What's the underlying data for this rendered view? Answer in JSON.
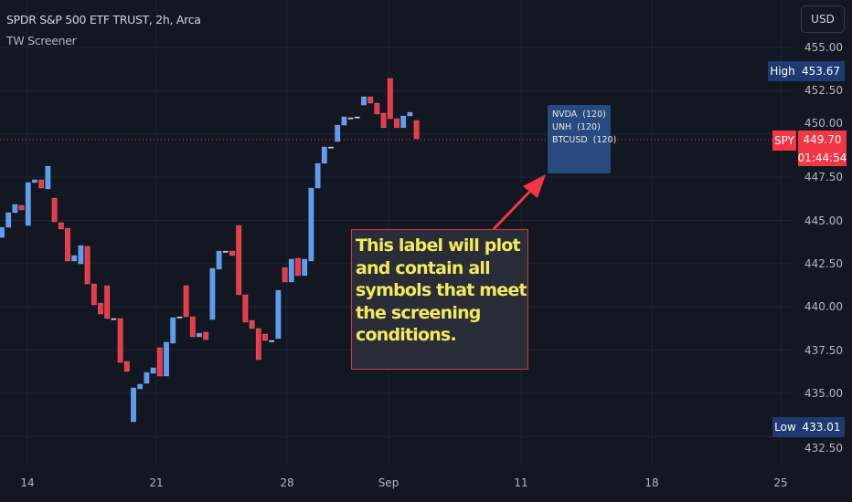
{
  "header": {
    "title": "SPDR S&P 500 ETF TRUST, 2h, Arca",
    "indicator": "TW Screener",
    "currency_button": "USD"
  },
  "price_axis": {
    "ticks": [
      "455.00",
      "452.50",
      "450.00",
      "447.50",
      "445.00",
      "442.50",
      "440.00",
      "437.50",
      "435.00",
      "432.50"
    ]
  },
  "time_axis": {
    "ticks": [
      "14",
      "21",
      "28",
      "Sep",
      "11",
      "18",
      "25"
    ]
  },
  "tags": {
    "high": {
      "label": "High",
      "value": "453.67"
    },
    "low": {
      "label": "Low",
      "value": "433.01"
    },
    "last": {
      "symbol": "SPY",
      "price": "449.70",
      "countdown": "01:44:54"
    }
  },
  "screener_label": {
    "lines": [
      "NVDA  (120)",
      "UNH  (120)",
      "BTCUSD  (120)"
    ]
  },
  "annotation": {
    "text": "This label will plot and contain all symbols that meet the screening conditions."
  },
  "colors": {
    "up": "#5b9cf6",
    "down": "#f23645",
    "doji": "#c8ccd6",
    "background": "#131722",
    "annotation_text": "#f3ea5d",
    "screener_bg": "#284a7e",
    "arrow": "#f23645"
  },
  "chart_data": {
    "type": "candlestick",
    "title": "SPDR S&P 500 ETF TRUST, 2h, Arca",
    "ylim": [
      431.5,
      456.5
    ],
    "yticks": [
      455,
      452.5,
      450,
      447.5,
      445,
      442.5,
      440,
      437.5,
      435,
      432.5
    ],
    "grid": true,
    "bars": [
      [
        444.02,
        444.6
      ],
      [
        444.6,
        445.45
      ],
      [
        445.45,
        445.92
      ],
      [
        445.87,
        445.61
      ],
      [
        444.71,
        447.19
      ],
      [
        447.19,
        447.35
      ],
      [
        447.35,
        446.87
      ],
      [
        446.82,
        448.14
      ],
      [
        446.29,
        444.92
      ],
      [
        444.87,
        444.5
      ],
      [
        444.55,
        442.65
      ],
      [
        442.65,
        442.97
      ],
      [
        442.49,
        443.55
      ],
      [
        443.5,
        441.33
      ],
      [
        441.33,
        440.12
      ],
      [
        440.22,
        439.59
      ],
      [
        441.23,
        439.33
      ],
      [
        439.33,
        439.33
      ],
      [
        439.33,
        436.79
      ],
      [
        436.85,
        436.27
      ],
      [
        433.36,
        435.32
      ],
      [
        435.26,
        435.53
      ],
      [
        435.58,
        436.21
      ],
      [
        436.16,
        436.48
      ],
      [
        437.64,
        436.0
      ],
      [
        436.0,
        437.96
      ],
      [
        437.9,
        439.38
      ],
      [
        439.43,
        439.43
      ],
      [
        441.23,
        439.43
      ],
      [
        439.43,
        438.27
      ],
      [
        438.27,
        438.48
      ],
      [
        438.54,
        438.11
      ],
      [
        439.27,
        442.23
      ],
      [
        442.18,
        443.23
      ],
      [
        443.23,
        443.23
      ],
      [
        443.23,
        442.97
      ],
      [
        444.71,
        440.7
      ],
      [
        440.7,
        439.12
      ],
      [
        439.22,
        438.75
      ],
      [
        438.75,
        436.95
      ],
      [
        438.43,
        438.06
      ],
      [
        438.06,
        438.06
      ],
      [
        438.17,
        440.96
      ],
      [
        442.28,
        441.44
      ],
      [
        441.44,
        442.76
      ],
      [
        442.81,
        441.81
      ],
      [
        441.81,
        442.76
      ],
      [
        442.65,
        446.87
      ],
      [
        446.87,
        448.3
      ],
      [
        448.3,
        449.25
      ],
      [
        449.25,
        449.25
      ],
      [
        449.56,
        450.51
      ],
      [
        450.51,
        450.99
      ],
      [
        450.94,
        450.94
      ],
      [
        450.99,
        450.99
      ],
      [
        451.67,
        452.15
      ],
      [
        452.15,
        451.78
      ],
      [
        451.78,
        451.15
      ],
      [
        451.2,
        450.36
      ],
      [
        453.21,
        450.88
      ],
      [
        450.88,
        450.36
      ],
      [
        450.36,
        451.04
      ],
      [
        451.04,
        451.25
      ],
      [
        450.78,
        449.72
      ]
    ],
    "bar_fields": [
      "open",
      "close"
    ],
    "high": 453.67,
    "low": 433.01,
    "last": 449.7
  }
}
